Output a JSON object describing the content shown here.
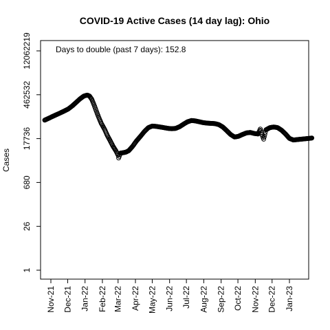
{
  "chart_data": {
    "type": "scatter",
    "title": "COVID-19 Active Cases (14 day lag): Ohio",
    "xlabel": "",
    "ylabel": "Cases",
    "annotation": "Days to double (past 7 days): 152.8",
    "y_scale": "log",
    "xlim": [
      "2021-10-21",
      "2023-02-28"
    ],
    "ylim": [
      1,
      12062219
    ],
    "y_ticks": [
      1,
      26,
      680,
      17736,
      462532,
      12062219
    ],
    "y_tick_labels": [
      "1",
      "26",
      "680",
      "17736",
      "462532",
      "12062219"
    ],
    "x_ticks": [
      "2021-11-01",
      "2021-12-01",
      "2022-01-01",
      "2022-02-01",
      "2022-03-01",
      "2022-04-01",
      "2022-05-01",
      "2022-06-01",
      "2022-07-01",
      "2022-08-01",
      "2022-09-01",
      "2022-10-01",
      "2022-11-01",
      "2022-12-01",
      "2023-01-01"
    ],
    "x_tick_labels": [
      "Nov-21",
      "Dec-21",
      "Jan-22",
      "Feb-22",
      "Mar-22",
      "Apr-22",
      "May-22",
      "Jun-22",
      "Jul-22",
      "Aug-22",
      "Sep-22",
      "Oct-22",
      "Nov-22",
      "Dec-22",
      "Jan-23"
    ],
    "grid": false,
    "marker": "open-circle",
    "series": [
      {
        "points": [
          [
            "2021-10-21",
            70000
          ],
          [
            "2021-10-28",
            80000
          ],
          [
            "2021-11-04",
            92000
          ],
          [
            "2021-11-11",
            105000
          ],
          [
            "2021-11-18",
            120000
          ],
          [
            "2021-11-25",
            138000
          ],
          [
            "2021-12-02",
            160000
          ],
          [
            "2021-12-09",
            200000
          ],
          [
            "2021-12-16",
            260000
          ],
          [
            "2021-12-23",
            340000
          ],
          [
            "2021-12-30",
            420000
          ],
          [
            "2022-01-05",
            450000
          ],
          [
            "2022-01-09",
            420000
          ],
          [
            "2022-01-13",
            330000
          ],
          [
            "2022-01-17",
            220000
          ],
          [
            "2022-01-21",
            140000
          ],
          [
            "2022-01-25",
            90000
          ],
          [
            "2022-01-30",
            55000
          ],
          [
            "2022-02-05",
            35000
          ],
          [
            "2022-02-10",
            22000
          ],
          [
            "2022-02-15",
            15000
          ],
          [
            "2022-02-20",
            10000
          ],
          [
            "2022-02-25",
            7200
          ],
          [
            "2022-03-01",
            5200
          ],
          [
            "2022-03-02",
            4200
          ],
          [
            "2022-03-05",
            6000
          ],
          [
            "2022-03-10",
            6200
          ],
          [
            "2022-03-15",
            6500
          ],
          [
            "2022-03-20",
            7200
          ],
          [
            "2022-03-27",
            10000
          ],
          [
            "2022-04-03",
            15000
          ],
          [
            "2022-04-10",
            21000
          ],
          [
            "2022-04-17",
            30000
          ],
          [
            "2022-04-24",
            40000
          ],
          [
            "2022-05-01",
            45000
          ],
          [
            "2022-05-08",
            44000
          ],
          [
            "2022-05-15",
            42000
          ],
          [
            "2022-05-22",
            40000
          ],
          [
            "2022-05-29",
            38000
          ],
          [
            "2022-06-05",
            37000
          ],
          [
            "2022-06-12",
            38000
          ],
          [
            "2022-06-19",
            43000
          ],
          [
            "2022-06-26",
            52000
          ],
          [
            "2022-07-03",
            62000
          ],
          [
            "2022-07-10",
            68000
          ],
          [
            "2022-07-17",
            66000
          ],
          [
            "2022-07-24",
            62000
          ],
          [
            "2022-07-31",
            58000
          ],
          [
            "2022-08-07",
            56000
          ],
          [
            "2022-08-14",
            55000
          ],
          [
            "2022-08-21",
            54000
          ],
          [
            "2022-08-28",
            50000
          ],
          [
            "2022-09-04",
            42000
          ],
          [
            "2022-09-11",
            32000
          ],
          [
            "2022-09-18",
            24000
          ],
          [
            "2022-09-25",
            20000
          ],
          [
            "2022-10-02",
            21000
          ],
          [
            "2022-10-09",
            24000
          ],
          [
            "2022-10-16",
            27000
          ],
          [
            "2022-10-23",
            28000
          ],
          [
            "2022-10-30",
            26000
          ],
          [
            "2022-11-06",
            25000
          ],
          [
            "2022-11-10",
            36000
          ],
          [
            "2022-11-13",
            24000
          ],
          [
            "2022-11-16",
            17000
          ],
          [
            "2022-11-20",
            34000
          ],
          [
            "2022-11-27",
            40000
          ],
          [
            "2022-12-04",
            42000
          ],
          [
            "2022-12-11",
            40000
          ],
          [
            "2022-12-18",
            33000
          ],
          [
            "2022-12-25",
            25000
          ],
          [
            "2023-01-01",
            18000
          ],
          [
            "2023-01-08",
            16000
          ],
          [
            "2023-01-15",
            16500
          ],
          [
            "2023-01-22",
            17000
          ],
          [
            "2023-01-29",
            17500
          ],
          [
            "2023-02-05",
            18000
          ],
          [
            "2023-02-10",
            18500
          ]
        ]
      }
    ]
  }
}
